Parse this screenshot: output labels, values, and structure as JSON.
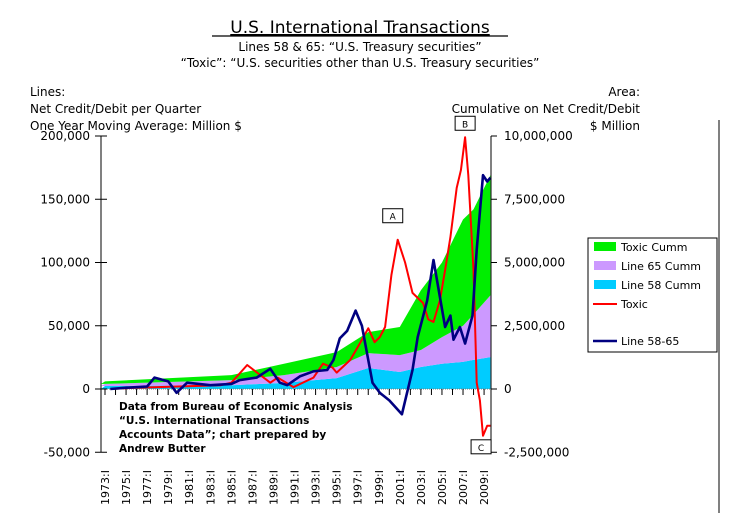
{
  "chart_data": {
    "type": "line",
    "title": "U.S. International Transactions",
    "subtitle_1": "Lines 58 & 65: “U.S. Treasury securities”",
    "subtitle_2": "“Toxic”: “U.S. securities other than U.S. Treasury securities”",
    "left_axis_note": [
      "Lines:",
      "Net Credit/Debit per Quarter",
      "One Year Moving Average: Million $"
    ],
    "right_axis_note": [
      "Area:",
      "Cumulative on Net Credit/Debit",
      "$ Million"
    ],
    "source_note": [
      "Data from Bureau of Economic Analysis",
      "“U.S. International Transactions",
      "Accounts Data”; chart prepared by",
      "Andrew Butter"
    ],
    "ylim_left": [
      -50000,
      200000
    ],
    "ylim_right": [
      -2500000,
      10000000
    ],
    "yticks_left": [
      "200,000",
      "150,000",
      "100,000",
      "50,000",
      "0",
      "-50,000"
    ],
    "yticks_left_values": [
      200000,
      150000,
      100000,
      50000,
      0,
      -50000
    ],
    "yticks_right": [
      "10,000,000",
      "7,500,000",
      "5,000,000",
      "2,500,000",
      "0",
      "-2,500,000"
    ],
    "yticks_right_values": [
      10000000,
      7500000,
      5000000,
      2500000,
      0,
      -2500000
    ],
    "xticks": [
      "1973:I",
      "1975:I",
      "1977:I",
      "1979:I",
      "1981:I",
      "1983:I",
      "1985:I",
      "1987:I",
      "1989:I",
      "1991:I",
      "1993:I",
      "1995:I",
      "1997:I",
      "1999:I",
      "2001:I",
      "2003:I",
      "2005:I",
      "2007:I",
      "2009:I"
    ],
    "xtick_years": [
      1973,
      1975,
      1977,
      1979,
      1981,
      1983,
      1985,
      1987,
      1989,
      1991,
      1993,
      1995,
      1997,
      1999,
      2001,
      2003,
      2005,
      2007,
      2009
    ],
    "xlim": [
      1972.6,
      2009.7
    ],
    "annotations": [
      {
        "label": "A",
        "year": 2000.8,
        "value": 118000
      },
      {
        "label": "B",
        "year": 2007.2,
        "value": 199000
      },
      {
        "label": "C",
        "year": 2009.0,
        "value": -37000
      }
    ],
    "areas_stacked_cumulative": {
      "years": [
        1973,
        1985,
        1990,
        1995,
        1998,
        2001,
        2003,
        2005,
        2007,
        2008,
        2009.6
      ],
      "series": [
        {
          "name": "Line 58 Cumm",
          "color": "#00ccff",
          "values": [
            120000,
            150000,
            240000,
            430000,
            830000,
            670000,
            870000,
            1000000,
            1070000,
            1150000,
            1260000
          ]
        },
        {
          "name": "Line 65 Cumm",
          "color": "#cc99ff",
          "values": [
            80000,
            200000,
            310000,
            440000,
            590000,
            670000,
            670000,
            1050000,
            1430000,
            1800000,
            2440000
          ]
        },
        {
          "name": "Toxic Cumm",
          "color": "#00ee00",
          "values": [
            100000,
            200000,
            450000,
            590000,
            830000,
            1110000,
            2360000,
            2950000,
            4200000,
            4150000,
            4750000
          ]
        }
      ]
    },
    "lines": [
      {
        "name": "Toxic",
        "color": "#ff0000",
        "years": [
          1973.5,
          1976,
          1980,
          1984,
          1985,
          1986.5,
          1988.7,
          1989.4,
          1990.9,
          1992.8,
          1993.7,
          1994.6,
          1995,
          1996.3,
          1997.2,
          1998,
          1998.6,
          1999.1,
          1999.6,
          2000.2,
          2000.8,
          2001.5,
          2002.2,
          2003.2,
          2003.7,
          2004.2,
          2004.8,
          2005.3,
          2005.8,
          2006.4,
          2006.8,
          2007.2,
          2007.5,
          2008,
          2008.3,
          2008.6,
          2008.9,
          2009.3,
          2009.6
        ],
        "values": [
          0,
          1000,
          2000,
          3000,
          5000,
          19000,
          5000,
          9000,
          1500,
          9000,
          20000,
          17000,
          13000,
          23000,
          36000,
          48000,
          37000,
          41000,
          49000,
          90000,
          118000,
          100000,
          76000,
          68000,
          55000,
          53000,
          70000,
          94000,
          120000,
          159000,
          173000,
          199000,
          169000,
          94000,
          5000,
          -9000,
          -37000,
          -29000,
          -29000
        ]
      },
      {
        "name": "Line 58-65",
        "color": "#000080",
        "years": [
          1973.5,
          1975,
          1977,
          1977.7,
          1979,
          1979.8,
          1980.8,
          1983,
          1985,
          1985.8,
          1987.4,
          1988.7,
          1989.6,
          1990.3,
          1991.5,
          1992.8,
          1994.1,
          1994.7,
          1995.3,
          1996,
          1996.8,
          1997.4,
          1998.4,
          1999.1,
          2000,
          2001.2,
          2002.2,
          2002.7,
          2003.6,
          2004.2,
          2005.3,
          2005.8,
          2006.1,
          2006.7,
          2007.2,
          2007.9,
          2008.3,
          2008.9,
          2009.3,
          2009.6
        ],
        "values": [
          0,
          1000,
          2000,
          9000,
          6000,
          -3000,
          5000,
          3000,
          4000,
          7000,
          9000,
          16000,
          5000,
          3000,
          10000,
          14000,
          15000,
          23000,
          40000,
          46000,
          62000,
          50000,
          5000,
          -3000,
          -9000,
          -20000,
          15000,
          41000,
          70000,
          102000,
          49000,
          58000,
          39000,
          49000,
          36000,
          58000,
          110000,
          169000,
          164000,
          167000
        ]
      }
    ],
    "legend": {
      "placement": "right",
      "entries": [
        "Toxic Cumm",
        "Line 65 Cumm",
        "Line 58 Cumm",
        "Toxic",
        "Line 58-65"
      ]
    }
  }
}
